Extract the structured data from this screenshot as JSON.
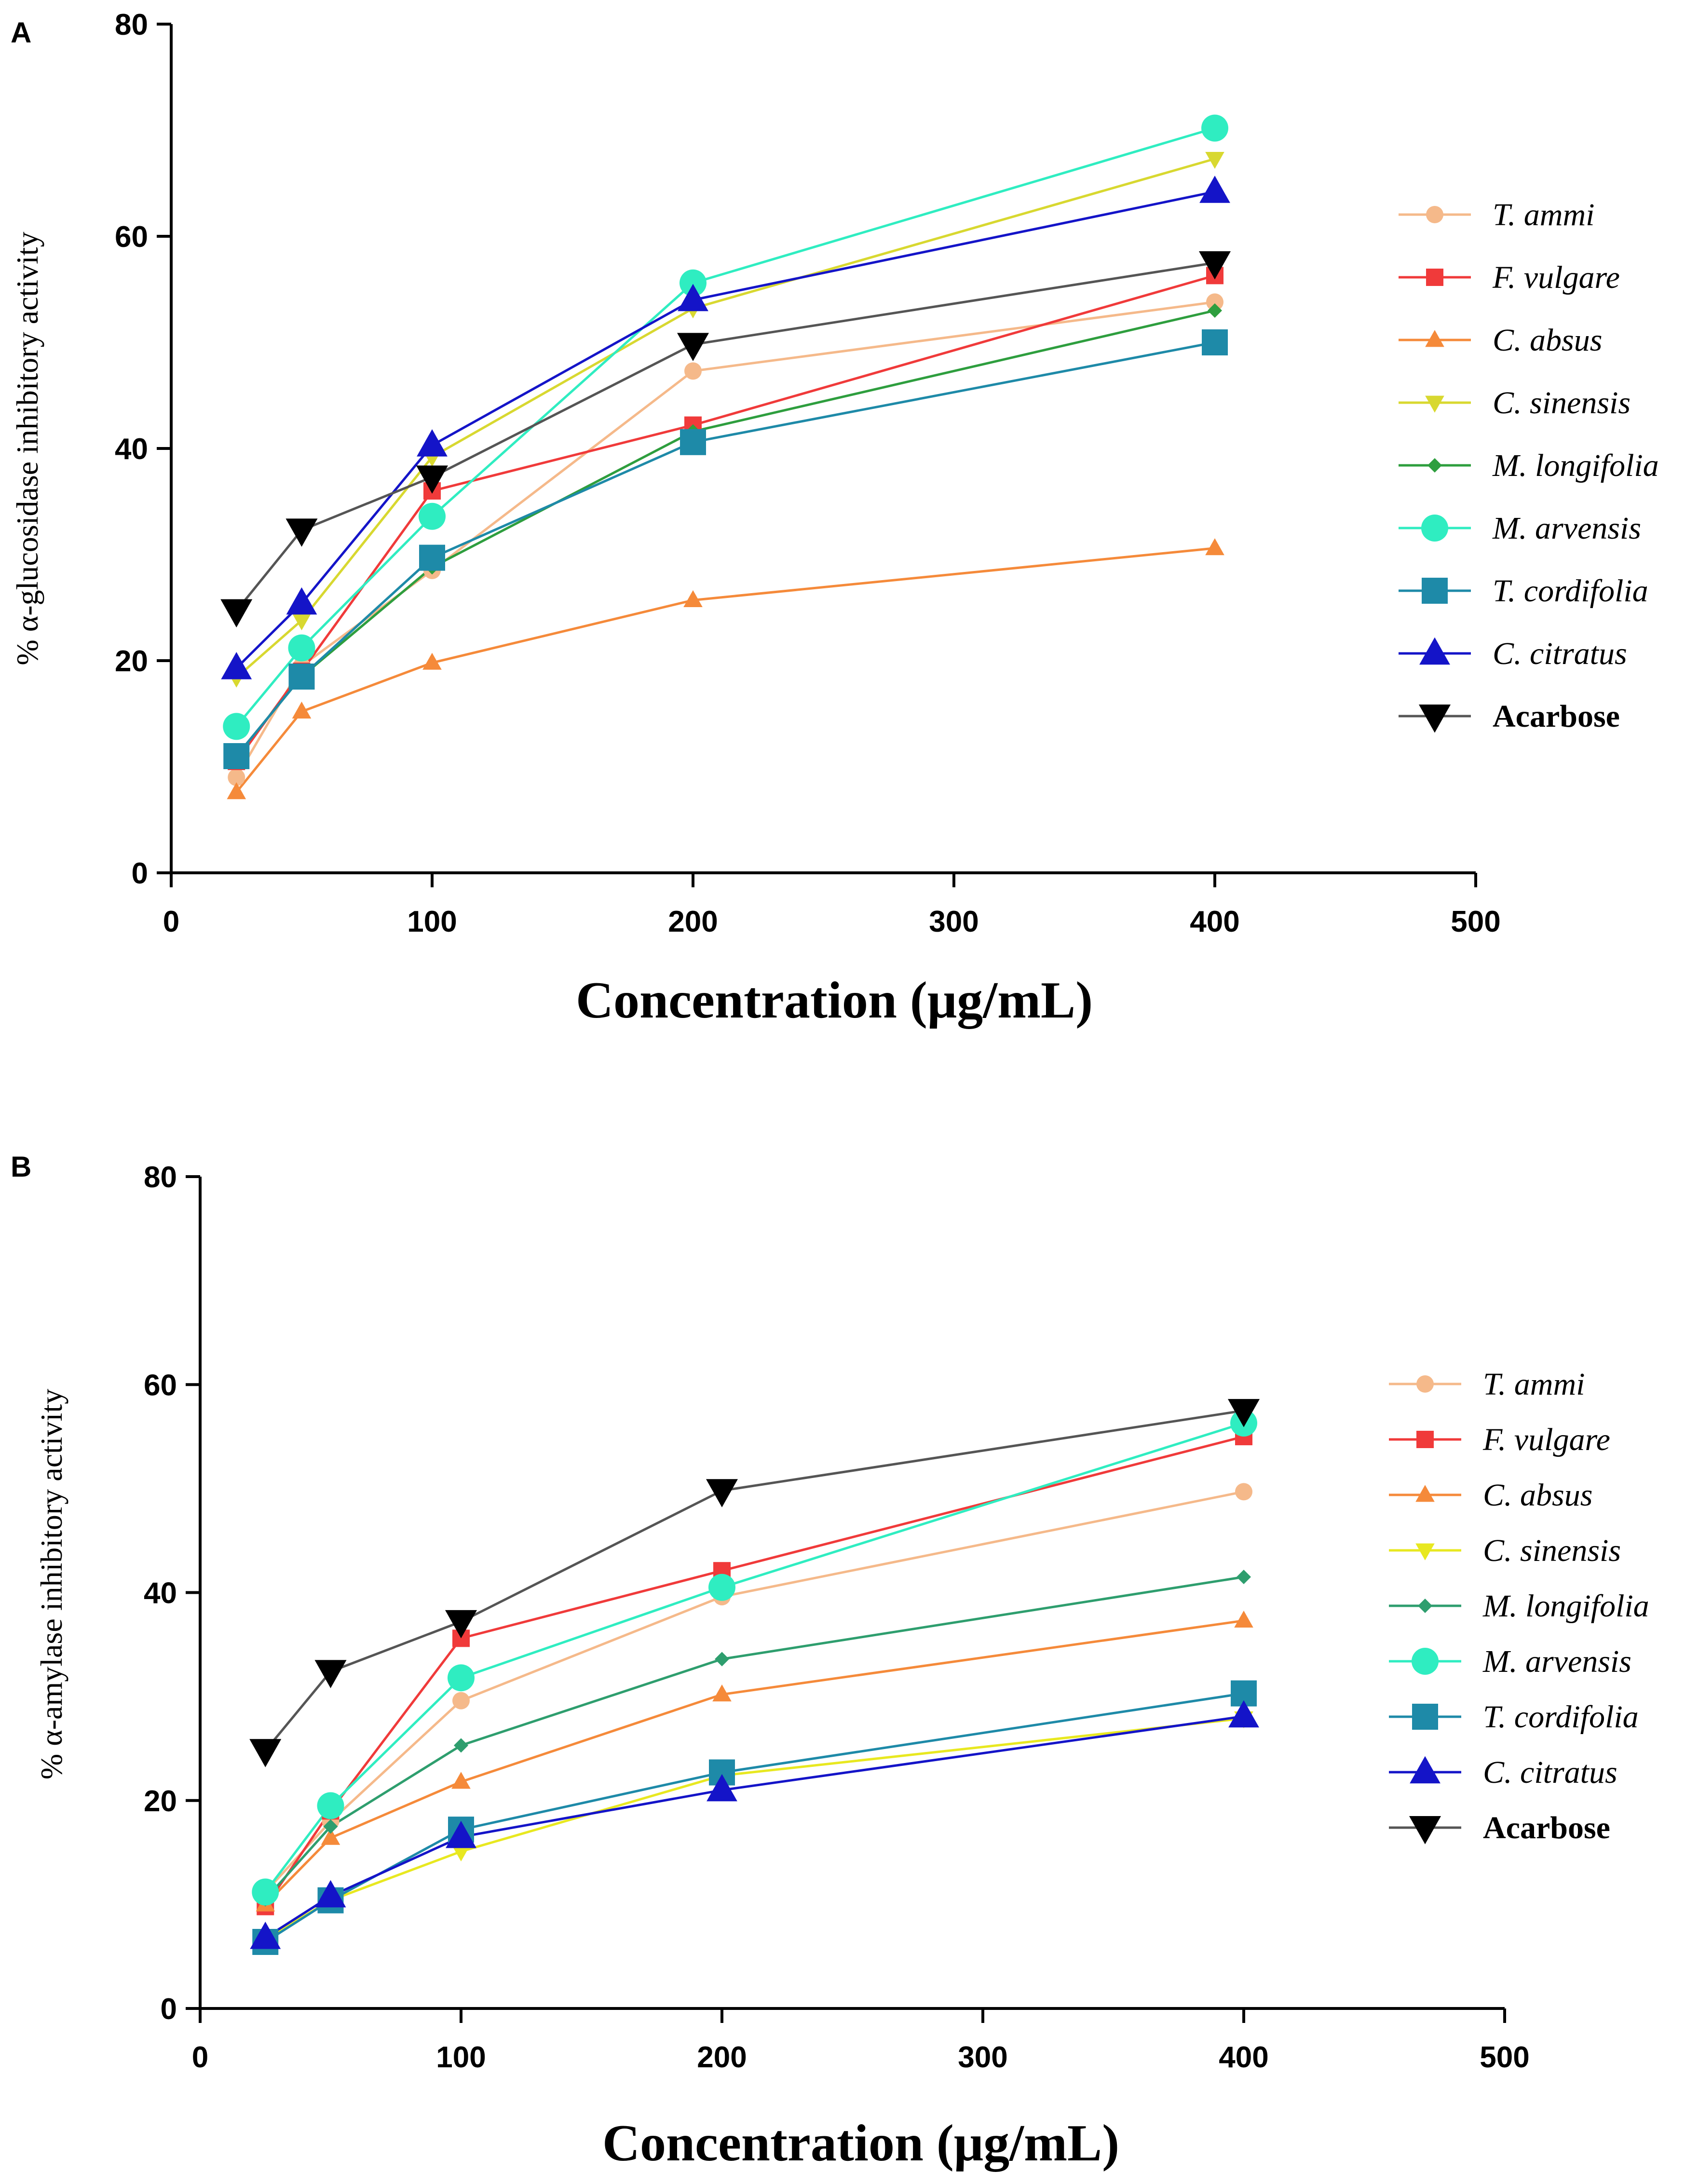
{
  "chart_data": [
    {
      "panel": "A",
      "type": "line",
      "title": "",
      "xlabel": "Concentration (μg/mL)",
      "ylabel": "% α-glucosidase inhibitory activity",
      "xlim": [
        0,
        500
      ],
      "ylim": [
        0,
        80
      ],
      "xticks": [
        "0",
        "100",
        "200",
        "300",
        "400",
        "500"
      ],
      "yticks": [
        "0",
        "20",
        "40",
        "60",
        "80"
      ],
      "grid": false,
      "legend_position": "right",
      "x": [
        25,
        50,
        100,
        200,
        400
      ],
      "series": [
        {
          "name": "T. ammi",
          "italic": true,
          "color": "#F5B98A",
          "marker": "circle",
          "values": [
            9,
            19.5,
            28.5,
            47.3,
            53.8
          ]
        },
        {
          "name": "F. vulgare",
          "italic": true,
          "color": "#F03A3A",
          "marker": "square",
          "values": [
            10.5,
            19,
            36,
            42.2,
            56.3
          ]
        },
        {
          "name": "C. absus",
          "italic": true,
          "color": "#F58A3A",
          "marker": "triangle-up",
          "values": [
            7.6,
            15.2,
            19.8,
            25.7,
            30.6
          ]
        },
        {
          "name": "C. sinensis",
          "italic": true,
          "color": "#D8D830",
          "marker": "triangle-down",
          "values": [
            18.4,
            23.8,
            39.2,
            53.2,
            67.3
          ]
        },
        {
          "name": "M. longifolia",
          "italic": true,
          "color": "#2E9E3E",
          "marker": "diamond",
          "values": [
            11,
            18.5,
            28.8,
            41.6,
            53
          ]
        },
        {
          "name": "M. arvensis",
          "italic": true,
          "color": "#2FEDC1",
          "marker": "circle",
          "values": [
            13.8,
            21.2,
            33.6,
            55.6,
            70.2
          ]
        },
        {
          "name": "T. cordifolia",
          "italic": true,
          "color": "#1E8AA8",
          "marker": "square",
          "values": [
            11,
            18.5,
            29.7,
            40.6,
            50
          ]
        },
        {
          "name": "C. citratus",
          "italic": true,
          "color": "#1414C8",
          "marker": "triangle-up",
          "values": [
            19.3,
            25.4,
            40.3,
            54,
            64.2
          ]
        },
        {
          "name": "Acarbose",
          "italic": false,
          "color": "#000000",
          "line_color": "#555555",
          "marker": "triangle-down",
          "values": [
            24.7,
            32.3,
            37.3,
            49.8,
            57.5
          ]
        }
      ]
    },
    {
      "panel": "B",
      "type": "line",
      "title": "",
      "xlabel": "Concentration (μg/mL)",
      "ylabel": "% α-amylase inhibitory activity",
      "xlim": [
        0,
        500
      ],
      "ylim": [
        0,
        80
      ],
      "xticks": [
        "0",
        "100",
        "200",
        "300",
        "400",
        "500"
      ],
      "yticks": [
        "0",
        "20",
        "40",
        "60",
        "80"
      ],
      "grid": false,
      "legend_position": "right",
      "x": [
        25,
        50,
        100,
        200,
        400
      ],
      "series": [
        {
          "name": "T. ammi",
          "italic": true,
          "color": "#F5B98A",
          "marker": "circle",
          "values": [
            11.2,
            18,
            29.6,
            39.6,
            49.7
          ]
        },
        {
          "name": "F. vulgare",
          "italic": true,
          "color": "#F03A3A",
          "marker": "square",
          "values": [
            9.8,
            19,
            35.6,
            42.1,
            55
          ]
        },
        {
          "name": "C. absus",
          "italic": true,
          "color": "#F58A3A",
          "marker": "triangle-up",
          "values": [
            10,
            16.4,
            21.8,
            30.2,
            37.3
          ]
        },
        {
          "name": "C. sinensis",
          "italic": true,
          "color": "#E8E820",
          "marker": "triangle-down",
          "values": [
            6.7,
            10.4,
            15.1,
            22.4,
            27.9
          ]
        },
        {
          "name": "M. longifolia",
          "italic": true,
          "color": "#2E9E6E",
          "marker": "diamond",
          "values": [
            10.5,
            17.5,
            25.3,
            33.6,
            41.5
          ]
        },
        {
          "name": "M. arvensis",
          "italic": true,
          "color": "#2FEDC1",
          "marker": "circle",
          "values": [
            11.2,
            19.5,
            31.8,
            40.5,
            56.3
          ]
        },
        {
          "name": "T. cordifolia",
          "italic": true,
          "color": "#1E8AA8",
          "marker": "square",
          "values": [
            6.4,
            10.4,
            17.2,
            22.7,
            30.3
          ]
        },
        {
          "name": "C. citratus",
          "italic": true,
          "color": "#1414C8",
          "marker": "triangle-up",
          "values": [
            6.8,
            10.8,
            16.5,
            21,
            28.1
          ]
        },
        {
          "name": "Acarbose",
          "italic": false,
          "color": "#000000",
          "line_color": "#555555",
          "marker": "triangle-down",
          "values": [
            24.8,
            32.4,
            37.2,
            49.8,
            57.5
          ]
        }
      ]
    }
  ]
}
